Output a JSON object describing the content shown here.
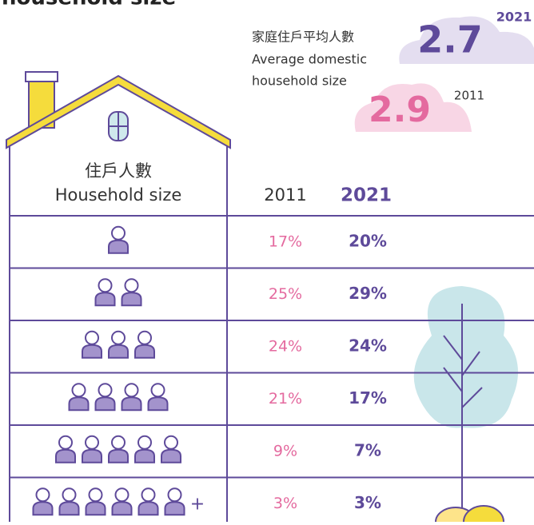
{
  "header": {
    "title": "household size"
  },
  "average": {
    "label_zh": "家庭住戶平均人數",
    "label_en_1": "Average domestic",
    "label_en_2": "household size",
    "year_2021": "2021",
    "value_2021": "2.7",
    "year_2011": "2011",
    "value_2011": "2.9"
  },
  "table": {
    "column_zh": "住戶人數",
    "column_en": "Household size",
    "col_2011": "2011",
    "col_2021": "2021",
    "rows": [
      {
        "v2011": "17%",
        "v2021": "20%"
      },
      {
        "v2011": "25%",
        "v2021": "29%"
      },
      {
        "v2011": "24%",
        "v2021": "24%"
      },
      {
        "v2011": "21%",
        "v2021": "17%"
      },
      {
        "v2011": "9%",
        "v2021": "7%"
      },
      {
        "v2011": "3%",
        "v2021": "3%",
        "suffix": "+"
      }
    ]
  }
}
